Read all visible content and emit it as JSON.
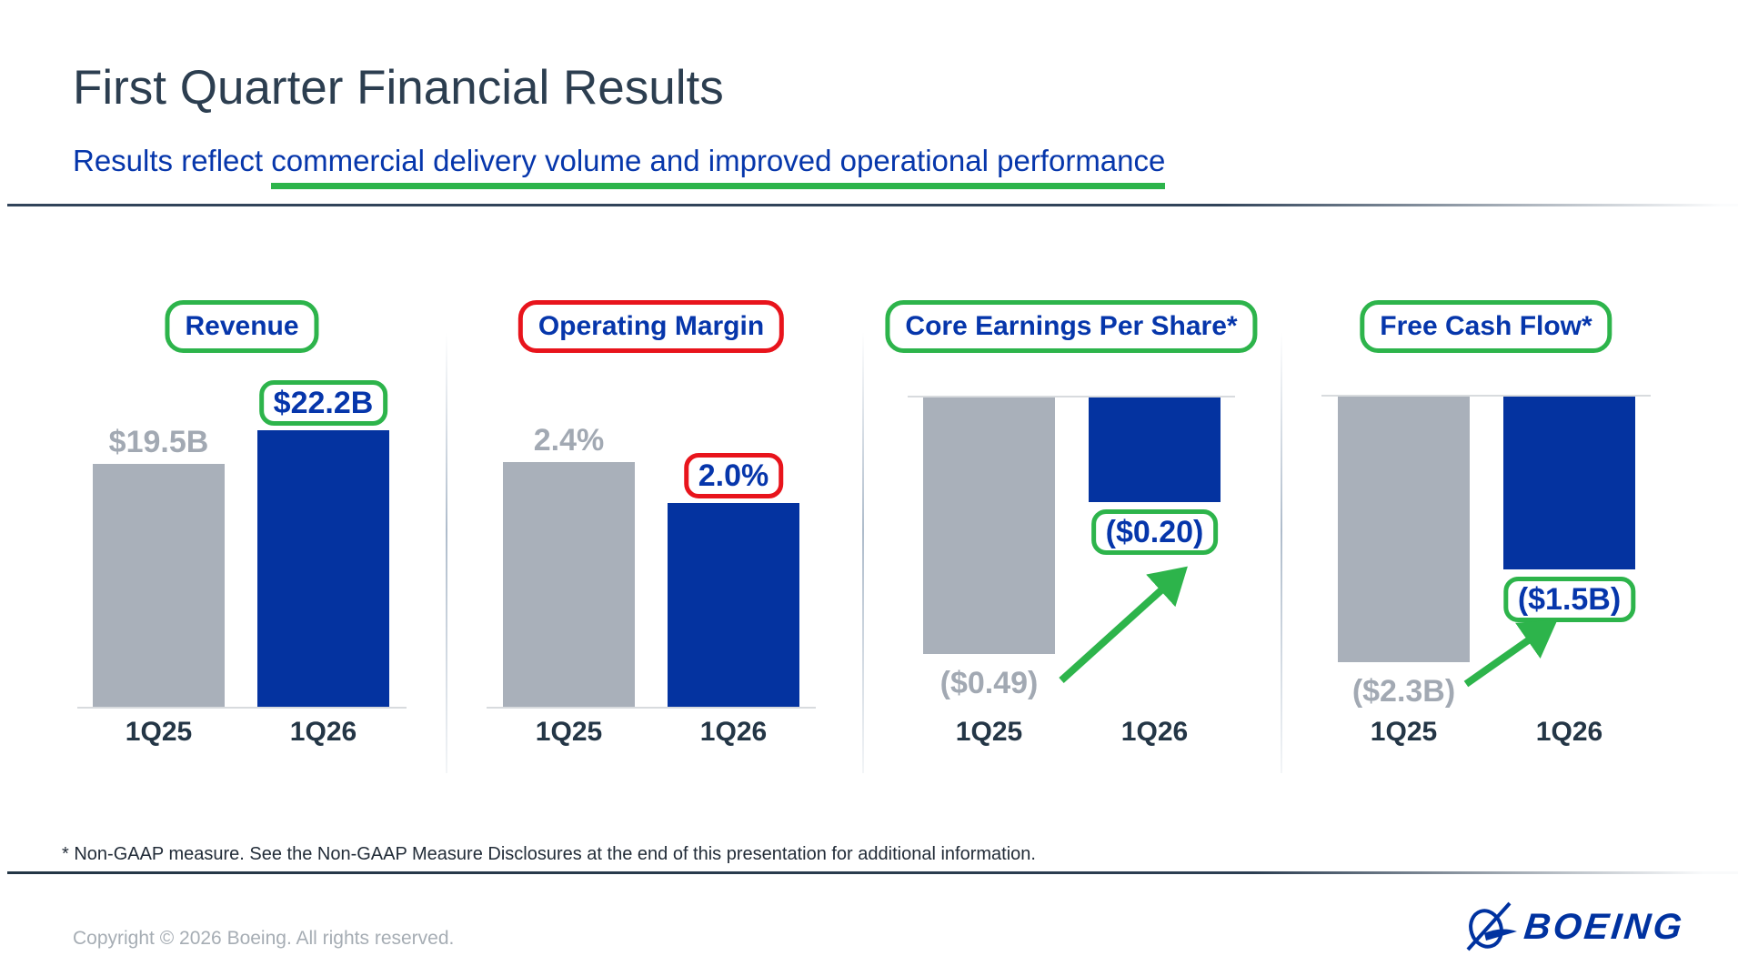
{
  "header": {
    "title": "First Quarter Financial Results",
    "subtitle_prefix": "Results reflect ",
    "subtitle_highlight": "commercial delivery volume and improved operational performance"
  },
  "chart_data": [
    {
      "type": "bar",
      "title": "Revenue",
      "title_box_color": "green",
      "categories": [
        "1Q25",
        "1Q26"
      ],
      "values": [
        19.5,
        22.2
      ],
      "value_labels": [
        "$19.5B",
        "$22.2B"
      ],
      "unit": "USD billions",
      "highlight_label_box_color": "green",
      "bar_colors": [
        "gray",
        "blue"
      ],
      "grid": false,
      "arrow_annotation": false
    },
    {
      "type": "bar",
      "title": "Operating Margin",
      "title_box_color": "red",
      "categories": [
        "1Q25",
        "1Q26"
      ],
      "values": [
        2.4,
        2.0
      ],
      "value_labels": [
        "2.4%",
        "2.0%"
      ],
      "unit": "percent",
      "highlight_label_box_color": "red",
      "bar_colors": [
        "gray",
        "blue"
      ],
      "grid": false,
      "arrow_annotation": false
    },
    {
      "type": "bar",
      "title": "Core Earnings Per Share*",
      "title_box_color": "green",
      "categories": [
        "1Q25",
        "1Q26"
      ],
      "values": [
        -0.49,
        -0.2
      ],
      "value_labels": [
        "($0.49)",
        "($0.20)"
      ],
      "unit": "USD per share",
      "highlight_label_box_color": "green",
      "bar_colors": [
        "gray",
        "blue"
      ],
      "grid": false,
      "arrow_annotation": true
    },
    {
      "type": "bar",
      "title": "Free Cash Flow*",
      "title_box_color": "green",
      "categories": [
        "1Q25",
        "1Q26"
      ],
      "values": [
        -2.3,
        -1.5
      ],
      "value_labels": [
        "($2.3B)",
        "($1.5B)"
      ],
      "unit": "USD billions",
      "highlight_label_box_color": "green",
      "bar_colors": [
        "gray",
        "blue"
      ],
      "grid": false,
      "arrow_annotation": true
    }
  ],
  "footnote": "* Non-GAAP measure. See the Non-GAAP Measure Disclosures at the end of this presentation for additional information.",
  "footer": {
    "copyright": "Copyright © 2026 Boeing. All rights reserved.",
    "logo_text": "BOEING"
  },
  "colors": {
    "bar_blue": "#0433a0",
    "bar_gray": "#a9b0ba",
    "text_blue": "#0636ab",
    "text_gray": "#a2a9b3",
    "text_navy": "#243646",
    "accent_green": "#2db44b",
    "accent_red": "#e8141c",
    "boeing_blue": "#0032a0"
  }
}
